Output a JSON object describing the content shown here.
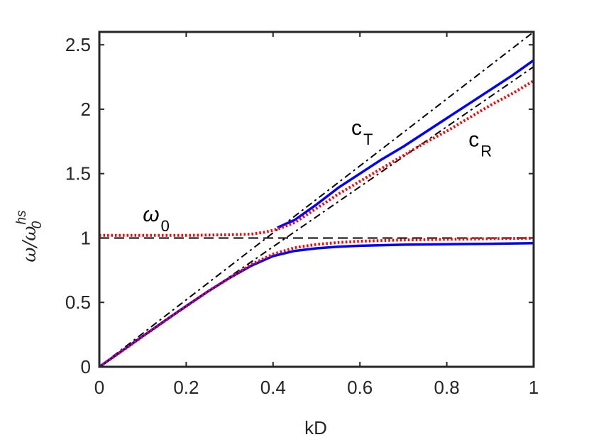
{
  "chart_data": {
    "type": "line",
    "xlabel": "kD",
    "ylabel": {
      "omega": "ω",
      "slash": "/",
      "omega_sub": "0",
      "omega_sup": "hs"
    },
    "xlim": [
      0,
      1
    ],
    "ylim": [
      0,
      2.6
    ],
    "xticks": [
      0,
      0.2,
      0.4,
      0.6,
      0.8,
      1
    ],
    "xtick_labels": [
      "0",
      "0.2",
      "0.4",
      "0.6",
      "0.8",
      "1"
    ],
    "yticks": [
      0,
      0.5,
      1,
      1.5,
      2,
      2.5
    ],
    "ytick_labels": [
      "0",
      "0.5",
      "1",
      "1.5",
      "2",
      "2.5"
    ],
    "grid": false,
    "box": true,
    "series": [
      {
        "style": "solid",
        "color": "#0000ff",
        "role": "upper-branch",
        "x": [
          0.41,
          0.45,
          0.5,
          0.55,
          0.6,
          0.65,
          0.7,
          0.75,
          0.8,
          0.85,
          0.9,
          0.95,
          1.0
        ],
        "y": [
          1.08,
          1.14,
          1.26,
          1.39,
          1.5,
          1.61,
          1.71,
          1.82,
          1.93,
          2.04,
          2.15,
          2.26,
          2.38
        ]
      },
      {
        "style": "solid",
        "color": "#0000ff",
        "role": "lower-branch",
        "x": [
          0,
          0.05,
          0.1,
          0.15,
          0.2,
          0.25,
          0.3,
          0.35,
          0.4,
          0.45,
          0.5,
          0.55,
          0.6,
          0.7,
          0.8,
          0.9,
          1.0
        ],
        "y": [
          0,
          0.119,
          0.238,
          0.356,
          0.472,
          0.585,
          0.69,
          0.785,
          0.86,
          0.9,
          0.92,
          0.932,
          0.94,
          0.948,
          0.952,
          0.955,
          0.96
        ]
      },
      {
        "style": "dotted",
        "color": "#ff0000",
        "role": "upper-branch",
        "x": [
          0,
          0.1,
          0.2,
          0.3,
          0.35,
          0.38,
          0.4,
          0.42,
          0.45,
          0.5,
          0.55,
          0.6,
          0.65,
          0.7,
          0.75,
          0.8,
          0.85,
          0.9,
          0.95,
          1.0
        ],
        "y": [
          1.02,
          1.02,
          1.02,
          1.025,
          1.03,
          1.045,
          1.06,
          1.08,
          1.12,
          1.23,
          1.34,
          1.44,
          1.54,
          1.64,
          1.74,
          1.83,
          1.93,
          2.03,
          2.12,
          2.22
        ]
      },
      {
        "style": "dotted",
        "color": "#ff0000",
        "role": "lower-branch",
        "x": [
          0,
          0.05,
          0.1,
          0.15,
          0.2,
          0.25,
          0.3,
          0.35,
          0.4,
          0.45,
          0.5,
          0.55,
          0.6,
          0.7,
          0.8,
          0.9,
          1.0
        ],
        "y": [
          0,
          0.118,
          0.236,
          0.354,
          0.47,
          0.585,
          0.69,
          0.795,
          0.875,
          0.925,
          0.95,
          0.965,
          0.975,
          0.985,
          0.99,
          0.995,
          0.998
        ]
      },
      {
        "style": "dashed",
        "color": "#000000",
        "role": "omega-0",
        "x": [
          0,
          1
        ],
        "y": [
          1,
          1
        ]
      },
      {
        "style": "dashdot",
        "color": "#000000",
        "role": "c_T",
        "x": [
          0,
          1
        ],
        "y": [
          0,
          2.6
        ]
      },
      {
        "style": "dashdot",
        "color": "#000000",
        "role": "c_R",
        "x": [
          0,
          1
        ],
        "y": [
          0,
          2.33
        ]
      }
    ],
    "annotations": [
      {
        "text": "ω",
        "sub": "0",
        "x": 0.1,
        "y": 1.13
      },
      {
        "text": "c",
        "sub": "T",
        "x": 0.58,
        "y": 1.8
      },
      {
        "text": "c",
        "sub": "R",
        "x": 0.85,
        "y": 1.71
      }
    ]
  }
}
